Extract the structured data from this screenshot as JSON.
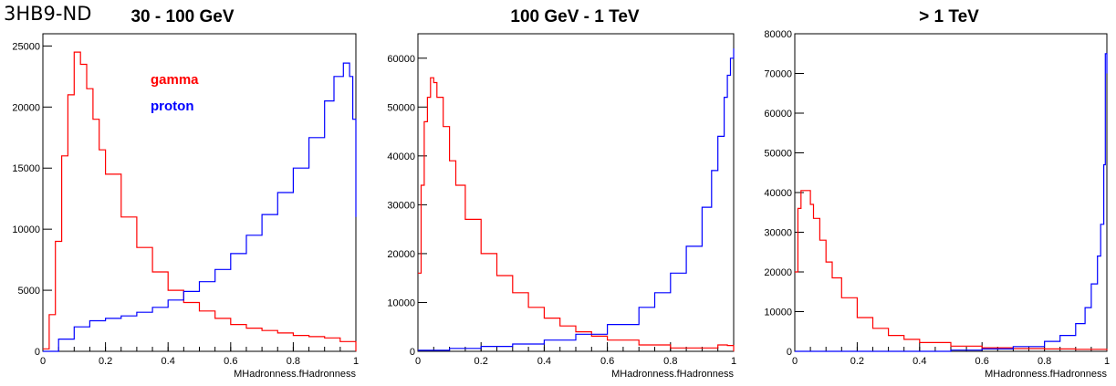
{
  "figure": {
    "title": "3HB9-ND"
  },
  "colors": {
    "gamma": "#ff0000",
    "proton": "#0000ff"
  },
  "chart_data": [
    {
      "type": "line",
      "title": "30 - 100 GeV",
      "xlabel": "MHadronness.fHadronness",
      "ylabel": "",
      "xlim": [
        0,
        1
      ],
      "ylim": [
        0,
        26000
      ],
      "xticks": [
        0,
        0.2,
        0.4,
        0.6,
        0.8,
        1
      ],
      "xtick_labels": [
        "0",
        "0.2",
        "0.4",
        "0.6",
        "0.8",
        "1"
      ],
      "yticks": [
        0,
        5000,
        10000,
        15000,
        20000,
        25000
      ],
      "ytick_labels": [
        "0",
        "5000",
        "10000",
        "15000",
        "20000",
        "25000"
      ],
      "legend": {
        "position": "top-left inside",
        "entries": [
          "gamma",
          "proton"
        ]
      },
      "series": [
        {
          "name": "gamma",
          "x": [
            0,
            0.02,
            0.04,
            0.06,
            0.08,
            0.1,
            0.12,
            0.14,
            0.16,
            0.18,
            0.2,
            0.25,
            0.3,
            0.35,
            0.4,
            0.45,
            0.5,
            0.55,
            0.6,
            0.65,
            0.7,
            0.75,
            0.8,
            0.85,
            0.9,
            0.95,
            1.0
          ],
          "y": [
            200,
            3000,
            9000,
            16000,
            21000,
            24500,
            23500,
            21500,
            19000,
            16500,
            14500,
            11000,
            8500,
            6500,
            5000,
            4000,
            3300,
            2700,
            2200,
            1900,
            1700,
            1500,
            1300,
            1200,
            1100,
            800,
            0
          ]
        },
        {
          "name": "proton",
          "x": [
            0,
            0.05,
            0.1,
            0.15,
            0.2,
            0.25,
            0.3,
            0.35,
            0.4,
            0.45,
            0.5,
            0.55,
            0.6,
            0.65,
            0.7,
            0.75,
            0.8,
            0.85,
            0.9,
            0.93,
            0.96,
            0.98,
            0.99,
            1.0
          ],
          "y": [
            0,
            1000,
            2000,
            2500,
            2700,
            2900,
            3200,
            3600,
            4200,
            4900,
            5700,
            6700,
            8000,
            9500,
            11200,
            13000,
            15000,
            17500,
            20500,
            22500,
            23600,
            22500,
            19000,
            11000
          ]
        }
      ]
    },
    {
      "type": "line",
      "title": "100 GeV  - 1 TeV",
      "xlabel": "MHadronness.fHadronness",
      "ylabel": "",
      "xlim": [
        0,
        1
      ],
      "ylim": [
        0,
        65000
      ],
      "xticks": [
        0,
        0.2,
        0.4,
        0.6,
        0.8,
        1
      ],
      "xtick_labels": [
        "0",
        "0.2",
        "0.4",
        "0.6",
        "0.8",
        "1"
      ],
      "yticks": [
        0,
        10000,
        20000,
        30000,
        40000,
        50000,
        60000
      ],
      "ytick_labels": [
        "0",
        "10000",
        "20000",
        "30000",
        "40000",
        "50000",
        "60000"
      ],
      "series": [
        {
          "name": "gamma",
          "x": [
            0,
            0.01,
            0.02,
            0.03,
            0.04,
            0.05,
            0.06,
            0.08,
            0.1,
            0.12,
            0.15,
            0.2,
            0.25,
            0.3,
            0.35,
            0.4,
            0.45,
            0.5,
            0.55,
            0.6,
            0.7,
            0.8,
            0.9,
            0.95,
            0.98,
            1.0
          ],
          "y": [
            16000,
            34000,
            47000,
            52000,
            56000,
            55000,
            52000,
            46000,
            39000,
            34000,
            27000,
            20000,
            15500,
            12000,
            9000,
            6800,
            5200,
            4000,
            3100,
            2300,
            1300,
            700,
            700,
            1300,
            1200,
            0
          ]
        },
        {
          "name": "proton",
          "x": [
            0,
            0.1,
            0.2,
            0.3,
            0.4,
            0.5,
            0.6,
            0.7,
            0.75,
            0.8,
            0.85,
            0.9,
            0.93,
            0.95,
            0.97,
            0.98,
            0.99,
            1.0
          ],
          "y": [
            200,
            600,
            1000,
            1500,
            2300,
            3500,
            5500,
            9000,
            12000,
            16000,
            21500,
            29500,
            37000,
            44000,
            52000,
            56500,
            60000,
            62000
          ]
        }
      ]
    },
    {
      "type": "line",
      "title": "> 1 TeV",
      "xlabel": "MHadronness.fHadronness",
      "ylabel": "",
      "xlim": [
        0,
        1
      ],
      "ylim": [
        0,
        80000
      ],
      "xticks": [
        0,
        0.2,
        0.4,
        0.6,
        0.8,
        1
      ],
      "xtick_labels": [
        "0",
        "0.2",
        "0.4",
        "0.6",
        "0.8",
        "1"
      ],
      "yticks": [
        0,
        10000,
        20000,
        30000,
        40000,
        50000,
        60000,
        70000,
        80000
      ],
      "ytick_labels": [
        "0",
        "10000",
        "20000",
        "30000",
        "40000",
        "50000",
        "60000",
        "70000",
        "80000"
      ],
      "series": [
        {
          "name": "gamma",
          "x": [
            0,
            0.01,
            0.02,
            0.03,
            0.04,
            0.05,
            0.06,
            0.08,
            0.1,
            0.12,
            0.15,
            0.2,
            0.25,
            0.3,
            0.35,
            0.4,
            0.5,
            0.6,
            0.7,
            0.8,
            0.9,
            1.0
          ],
          "y": [
            20000,
            36000,
            40500,
            40500,
            40500,
            37000,
            33500,
            28000,
            22500,
            18500,
            13500,
            8500,
            5800,
            4000,
            3000,
            2200,
            1300,
            900,
            700,
            600,
            500,
            300
          ]
        },
        {
          "name": "proton",
          "x": [
            0,
            0.5,
            0.6,
            0.7,
            0.8,
            0.85,
            0.9,
            0.93,
            0.95,
            0.97,
            0.98,
            0.99,
            0.995,
            1.0
          ],
          "y": [
            0,
            300,
            600,
            1200,
            2500,
            4000,
            7000,
            11000,
            17000,
            24000,
            32000,
            47000,
            75000,
            70000
          ]
        }
      ]
    }
  ]
}
